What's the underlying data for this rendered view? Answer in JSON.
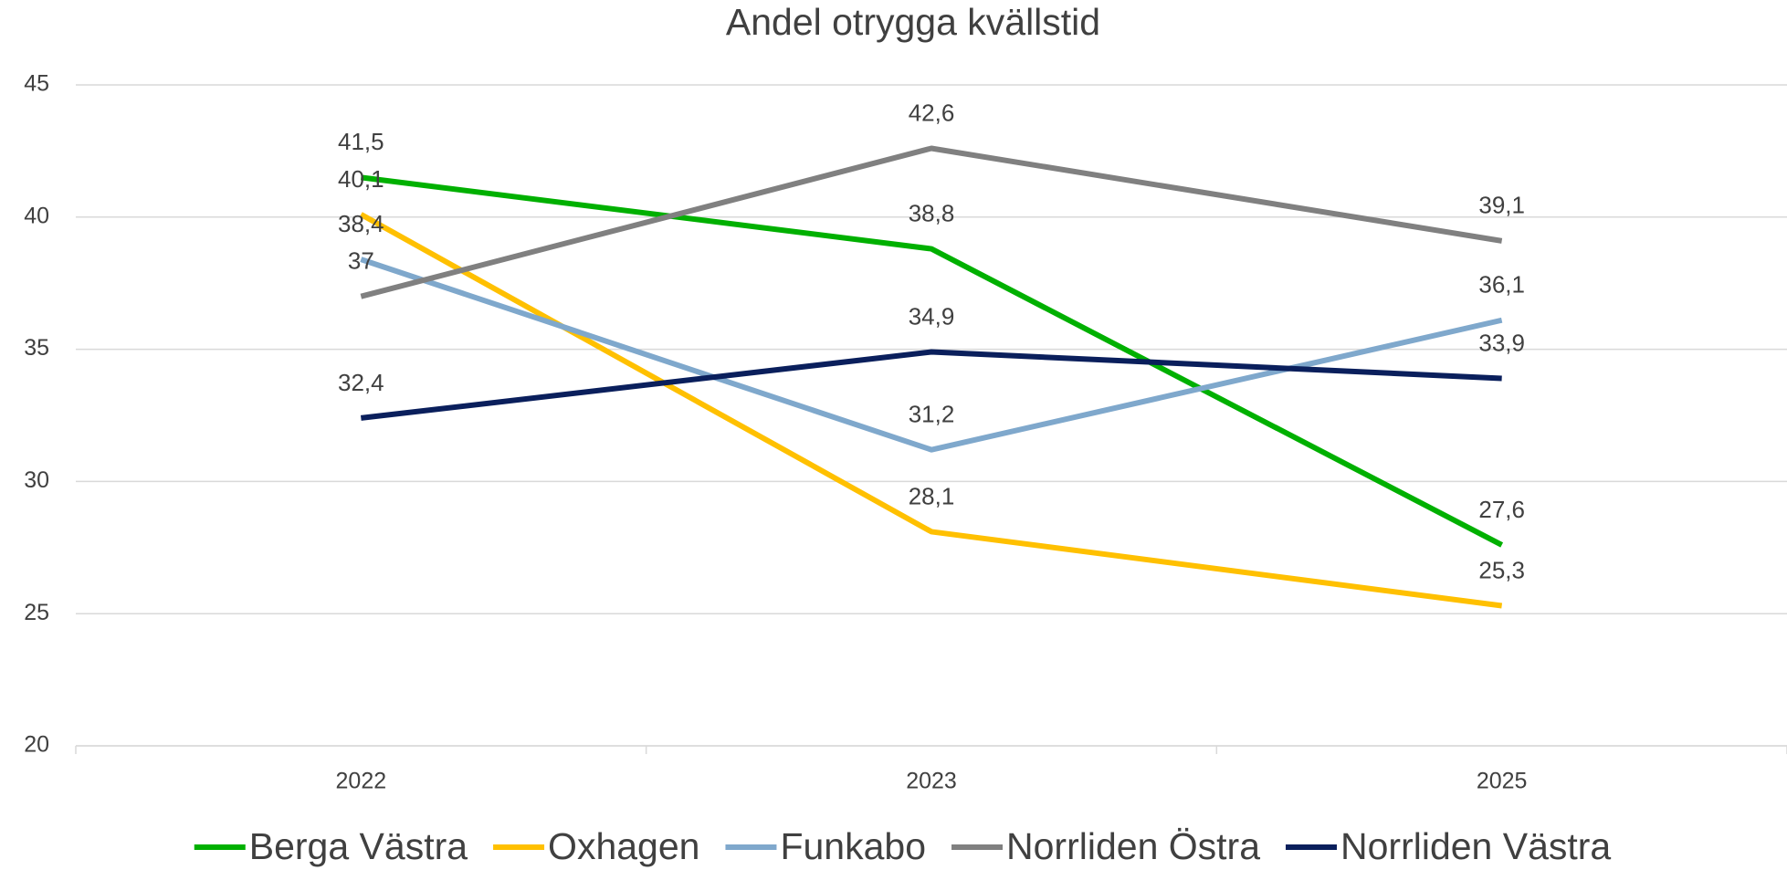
{
  "chart_data": {
    "type": "line",
    "title": "Andel otrygga kvällstid",
    "categories": [
      "2022",
      "2023",
      "2025"
    ],
    "series": [
      {
        "name": "Berga Västra",
        "color": "#00b000",
        "values": [
          41.5,
          38.8,
          27.6
        ],
        "value_labels": [
          "41,5",
          "38,8",
          "27,6"
        ]
      },
      {
        "name": "Oxhagen",
        "color": "#ffc000",
        "values": [
          40.1,
          28.1,
          25.3
        ],
        "value_labels": [
          "40,1",
          "28,1",
          "25,3"
        ]
      },
      {
        "name": "Funkabo",
        "color": "#7fa8cc",
        "values": [
          38.4,
          31.2,
          36.1
        ],
        "value_labels": [
          "38,4",
          "31,2",
          "36,1"
        ]
      },
      {
        "name": "Norrliden Östra",
        "color": "#808080",
        "values": [
          37,
          42.6,
          39.1
        ],
        "value_labels": [
          "37",
          "42,6",
          "39,1"
        ]
      },
      {
        "name": "Norrliden Västra",
        "color": "#0a1f5c",
        "values": [
          32.4,
          34.9,
          33.9
        ],
        "value_labels": [
          "32,4",
          "34,9",
          "33,9"
        ]
      }
    ],
    "ylim": [
      20,
      45
    ],
    "yticks": [
      20,
      25,
      30,
      35,
      40,
      45
    ],
    "grid": true,
    "legend": "bottom"
  }
}
